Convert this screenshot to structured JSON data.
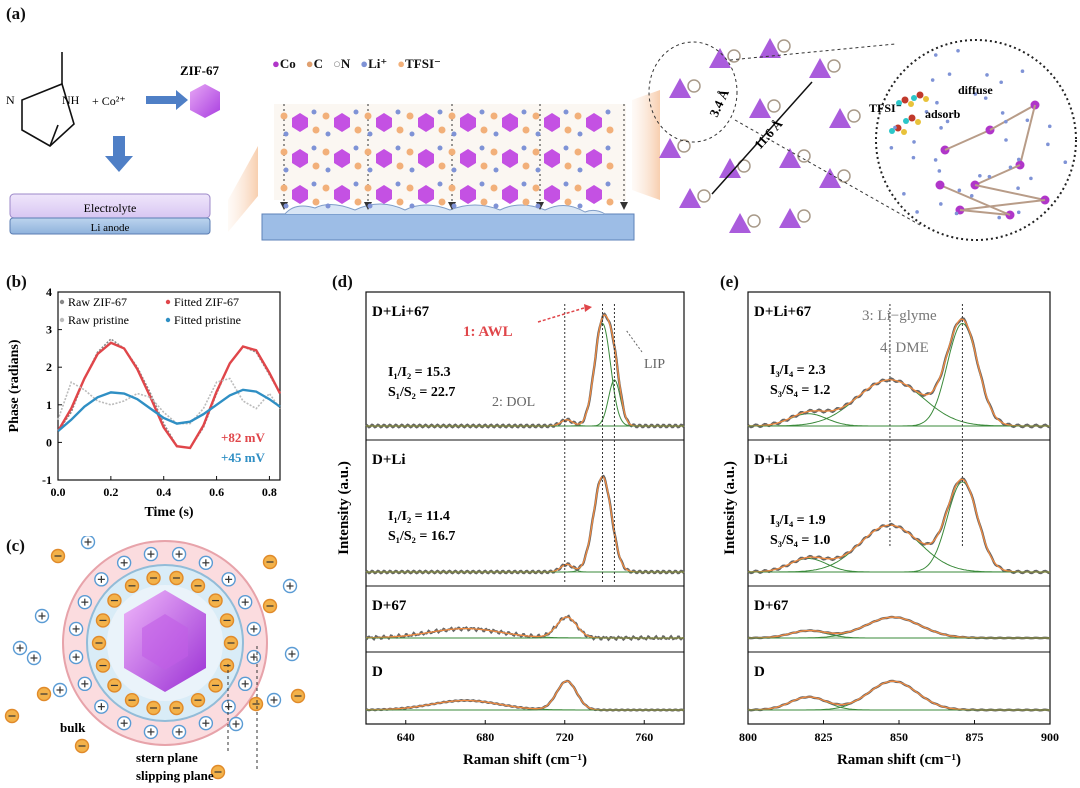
{
  "panel_labels": {
    "a": "(a)",
    "b": "(b)",
    "c": "(c)",
    "d": "(d)",
    "e": "(e)"
  },
  "panel_a": {
    "imidazole_N": "N",
    "imidazole_NH": "NH",
    "reagent": "+ Co²⁺",
    "zif_label": "ZIF-67",
    "electrolyte": "Electrolyte",
    "anode": "Li anode",
    "legend": [
      {
        "symbol": "●",
        "label": "Co",
        "color": "#b036c9"
      },
      {
        "symbol": "●",
        "label": "C",
        "color": "#e0a070"
      },
      {
        "symbol": "○",
        "label": "N",
        "color": "#888888"
      },
      {
        "symbol": "●",
        "label": "Li⁺",
        "color": "#7f93d6"
      },
      {
        "symbol": "●",
        "label": "TFSI⁻",
        "color": "#f2b07a"
      }
    ],
    "pore_small": "3.4 Å",
    "pore_large": "11.6 Å",
    "zoom_labels": {
      "diffuse": "diffuse",
      "tfsi": "TFSI⁻",
      "adsorb": "adsorb"
    }
  },
  "chart_data": [
    {
      "id": "b",
      "type": "line",
      "title": "",
      "xlabel": "Time (s)",
      "ylabel": "Phase (radians)",
      "xlim": [
        0.0,
        0.84
      ],
      "ylim": [
        -1,
        4
      ],
      "xticks": [
        "0.0",
        "0.2",
        "0.4",
        "0.6",
        "0.8"
      ],
      "yticks": [
        "-1",
        "0",
        "1",
        "2",
        "3",
        "4"
      ],
      "legend": [
        "Raw ZIF-67",
        "Fitted ZIF-67",
        "Raw pristine",
        "Fitted pristine"
      ],
      "annotations": [
        "+82 mV",
        "+45 mV"
      ],
      "series": [
        {
          "name": "Raw ZIF-67",
          "color": "#888888",
          "x": [
            0.0,
            0.05,
            0.1,
            0.15,
            0.2,
            0.25,
            0.3,
            0.35,
            0.4,
            0.45,
            0.5,
            0.55,
            0.6,
            0.65,
            0.7,
            0.75,
            0.8,
            0.84
          ],
          "y": [
            0.3,
            0.8,
            1.7,
            2.4,
            2.75,
            2.5,
            2.0,
            1.3,
            0.5,
            -0.1,
            -0.15,
            0.4,
            1.3,
            2.1,
            2.55,
            2.4,
            1.8,
            1.3
          ]
        },
        {
          "name": "Fitted ZIF-67",
          "color": "#e0464a",
          "x": [
            0.0,
            0.05,
            0.1,
            0.15,
            0.2,
            0.25,
            0.3,
            0.35,
            0.4,
            0.45,
            0.5,
            0.55,
            0.6,
            0.65,
            0.7,
            0.75,
            0.8,
            0.84
          ],
          "y": [
            0.3,
            0.9,
            1.7,
            2.35,
            2.65,
            2.5,
            1.95,
            1.2,
            0.4,
            -0.1,
            -0.15,
            0.45,
            1.35,
            2.1,
            2.55,
            2.45,
            1.85,
            1.3
          ]
        },
        {
          "name": "Raw pristine",
          "color": "#bbbbbb",
          "x": [
            0.0,
            0.05,
            0.1,
            0.15,
            0.2,
            0.25,
            0.3,
            0.35,
            0.4,
            0.45,
            0.5,
            0.55,
            0.6,
            0.65,
            0.7,
            0.75,
            0.8,
            0.84
          ],
          "y": [
            0.6,
            1.6,
            1.4,
            1.1,
            1.0,
            1.1,
            1.3,
            1.2,
            0.8,
            0.5,
            0.5,
            0.9,
            1.6,
            1.7,
            1.1,
            0.9,
            1.3,
            0.9
          ]
        },
        {
          "name": "Fitted pristine",
          "color": "#2f8fc4",
          "x": [
            0.0,
            0.05,
            0.1,
            0.15,
            0.2,
            0.25,
            0.3,
            0.35,
            0.4,
            0.45,
            0.5,
            0.55,
            0.6,
            0.65,
            0.7,
            0.75,
            0.8,
            0.84
          ],
          "y": [
            0.3,
            0.6,
            0.95,
            1.2,
            1.33,
            1.3,
            1.15,
            0.9,
            0.65,
            0.5,
            0.55,
            0.75,
            1.0,
            1.25,
            1.4,
            1.35,
            1.15,
            0.95
          ]
        }
      ]
    },
    {
      "id": "d",
      "type": "line",
      "xlabel": "Raman shift (cm⁻¹)",
      "ylabel": "Intensity (a.u.)",
      "xlim": [
        620,
        780
      ],
      "xticks": [
        "640",
        "680",
        "720",
        "760"
      ],
      "reference_lines": [
        720,
        739,
        745
      ],
      "annotations": [
        "1: AWL",
        "2: DOL",
        "LIP"
      ],
      "panels": [
        {
          "label": "D+Li+67",
          "ratios": [
            "I₁/I₂ = 15.3",
            "S₁/S₂ = 22.7"
          ],
          "peaks": [
            {
              "center": 721,
              "amp": 0.06,
              "width": 3
            },
            {
              "center": 739,
              "amp": 1.0,
              "width": 4
            },
            {
              "center": 745,
              "amp": 0.45,
              "width": 3
            }
          ]
        },
        {
          "label": "D+Li",
          "ratios": [
            "I₁/I₂ = 11.4",
            "S₁/S₂ = 16.7"
          ],
          "peaks": [
            {
              "center": 721,
              "amp": 0.08,
              "width": 3
            },
            {
              "center": 739,
              "amp": 1.0,
              "width": 4.5
            }
          ]
        },
        {
          "label": "D+67",
          "ratios": [],
          "peaks": [
            {
              "center": 670,
              "amp": 0.45,
              "width": 18
            },
            {
              "center": 721,
              "amp": 1.0,
              "width": 5
            }
          ]
        },
        {
          "label": "D",
          "ratios": [],
          "peaks": [
            {
              "center": 670,
              "amp": 0.33,
              "width": 17
            },
            {
              "center": 721,
              "amp": 1.0,
              "width": 5
            }
          ]
        }
      ]
    },
    {
      "id": "e",
      "type": "line",
      "xlabel": "Raman shift (cm⁻¹)",
      "ylabel": "Intensity (a.u.)",
      "xlim": [
        800,
        900
      ],
      "xticks": [
        "800",
        "825",
        "850",
        "875",
        "900"
      ],
      "reference_lines": [
        847,
        871
      ],
      "annotations": [
        "3: Li−glyme",
        "4: DME"
      ],
      "panels": [
        {
          "label": "D+Li+67",
          "ratios": [
            "I₃/I₄ = 2.3",
            "S₃/S₄ = 1.2"
          ],
          "peaks": [
            {
              "center": 820,
              "amp": 0.12,
              "width": 6
            },
            {
              "center": 847,
              "amp": 0.45,
              "width": 11
            },
            {
              "center": 871,
              "amp": 1.0,
              "width": 5
            }
          ]
        },
        {
          "label": "D+Li",
          "ratios": [
            "I₃/I₄ = 1.9",
            "S₃/S₄ = 1.0"
          ],
          "peaks": [
            {
              "center": 820,
              "amp": 0.15,
              "width": 6
            },
            {
              "center": 847,
              "amp": 0.52,
              "width": 10
            },
            {
              "center": 871,
              "amp": 1.0,
              "width": 5
            }
          ]
        },
        {
          "label": "D+67",
          "ratios": [],
          "peaks": [
            {
              "center": 820,
              "amp": 0.35,
              "width": 6
            },
            {
              "center": 848,
              "amp": 1.0,
              "width": 9
            }
          ]
        },
        {
          "label": "D",
          "ratios": [],
          "peaks": [
            {
              "center": 820,
              "amp": 0.45,
              "width": 6
            },
            {
              "center": 848,
              "amp": 1.0,
              "width": 8
            }
          ]
        }
      ]
    }
  ],
  "panel_c": {
    "bulk": "bulk",
    "stern": "stern plane",
    "slipping": "slipping plane"
  }
}
